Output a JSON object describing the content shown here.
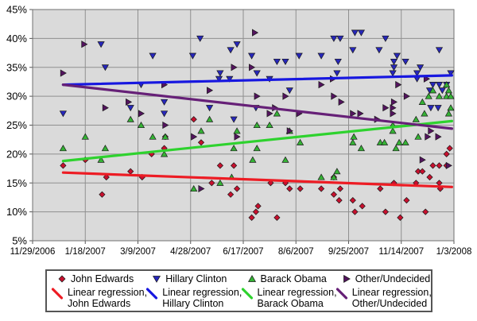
{
  "chart_data": {
    "type": "scatter",
    "title": "",
    "xlabel": "",
    "ylabel": "",
    "grid": true,
    "plot_bg": "#dadada",
    "grid_color": "#8f8f8f",
    "border_color": "#707070",
    "marker_edge": "#1a1a1a",
    "x_axis": {
      "range_days": [
        0,
        400
      ],
      "tick_days": [
        0,
        50,
        100,
        150,
        200,
        250,
        300,
        350,
        400
      ],
      "tick_labels": [
        "11/29/2006",
        "1/18/2007",
        "3/9/2007",
        "4/28/2007",
        "6/17/2007",
        "8/6/2007",
        "9/25/2007",
        "11/14/2007",
        "1/3/2008"
      ]
    },
    "y_axis": {
      "range": [
        5,
        45
      ],
      "ticks": [
        5,
        10,
        15,
        20,
        25,
        30,
        35,
        40,
        45
      ],
      "tick_labels": [
        "5%",
        "10%",
        "15%",
        "20%",
        "25%",
        "30%",
        "35%",
        "40%",
        "45%"
      ]
    },
    "series": [
      {
        "id": "edwards",
        "name": "John Edwards",
        "marker": "diamond",
        "color": "#c8102e",
        "points": [
          [
            29,
            18
          ],
          [
            50,
            19
          ],
          [
            66,
            13
          ],
          [
            70,
            16
          ],
          [
            93,
            17
          ],
          [
            104,
            16
          ],
          [
            113,
            20
          ],
          [
            125,
            21
          ],
          [
            126,
            23
          ],
          [
            153,
            26
          ],
          [
            160,
            22
          ],
          [
            170,
            15
          ],
          [
            178,
            18
          ],
          [
            188,
            13
          ],
          [
            191,
            18
          ],
          [
            194,
            14
          ],
          [
            208,
            9
          ],
          [
            212,
            10
          ],
          [
            214,
            11
          ],
          [
            226,
            15
          ],
          [
            232,
            9
          ],
          [
            240,
            15
          ],
          [
            244,
            14
          ],
          [
            254,
            14
          ],
          [
            274,
            14
          ],
          [
            286,
            16
          ],
          [
            286,
            13
          ],
          [
            291,
            12
          ],
          [
            292,
            14
          ],
          [
            304,
            12
          ],
          [
            306,
            10
          ],
          [
            313,
            11
          ],
          [
            330,
            14
          ],
          [
            335,
            10
          ],
          [
            343,
            15
          ],
          [
            349,
            9
          ],
          [
            355,
            12
          ],
          [
            364,
            15
          ],
          [
            366,
            17
          ],
          [
            370,
            17
          ],
          [
            373,
            10
          ],
          [
            377,
            16
          ],
          [
            380,
            18
          ],
          [
            386,
            15
          ],
          [
            386,
            18
          ],
          [
            387,
            14
          ],
          [
            393,
            18
          ],
          [
            393,
            20
          ],
          [
            396,
            21
          ]
        ]
      },
      {
        "id": "clinton",
        "name": "Hillary Clinton",
        "marker": "triangle-down",
        "color": "#2727bb",
        "points": [
          [
            29,
            27
          ],
          [
            65,
            39
          ],
          [
            69,
            35
          ],
          [
            93,
            28
          ],
          [
            103,
            32
          ],
          [
            114,
            37
          ],
          [
            125,
            29
          ],
          [
            125,
            27
          ],
          [
            152,
            37
          ],
          [
            159,
            40
          ],
          [
            168,
            28
          ],
          [
            177,
            33
          ],
          [
            178,
            34
          ],
          [
            187,
            33
          ],
          [
            188,
            38
          ],
          [
            191,
            26
          ],
          [
            194,
            39
          ],
          [
            208,
            37
          ],
          [
            212,
            28
          ],
          [
            213,
            34
          ],
          [
            225,
            33
          ],
          [
            232,
            36
          ],
          [
            240,
            36
          ],
          [
            244,
            31
          ],
          [
            253,
            37
          ],
          [
            274,
            37
          ],
          [
            286,
            40
          ],
          [
            289,
            34
          ],
          [
            290,
            36
          ],
          [
            292,
            40
          ],
          [
            304,
            38
          ],
          [
            306,
            41
          ],
          [
            312,
            41
          ],
          [
            329,
            38
          ],
          [
            335,
            40
          ],
          [
            342,
            34
          ],
          [
            343,
            36
          ],
          [
            343,
            35
          ],
          [
            346,
            37
          ],
          [
            354,
            36
          ],
          [
            365,
            34
          ],
          [
            365,
            33
          ],
          [
            368,
            35
          ],
          [
            377,
            31
          ],
          [
            378,
            28
          ],
          [
            380,
            32
          ],
          [
            385,
            28
          ],
          [
            386,
            32
          ],
          [
            386,
            38
          ],
          [
            389,
            31
          ],
          [
            393,
            32
          ],
          [
            397,
            34
          ]
        ]
      },
      {
        "id": "obama",
        "name": "Barack Obama",
        "marker": "triangle-up",
        "color": "#35b235",
        "points": [
          [
            29,
            21
          ],
          [
            50,
            23
          ],
          [
            65,
            19
          ],
          [
            69,
            21
          ],
          [
            93,
            26
          ],
          [
            103,
            25
          ],
          [
            114,
            23
          ],
          [
            125,
            20
          ],
          [
            126,
            23
          ],
          [
            153,
            14
          ],
          [
            160,
            24
          ],
          [
            168,
            26
          ],
          [
            178,
            15
          ],
          [
            189,
            16
          ],
          [
            191,
            21
          ],
          [
            194,
            24
          ],
          [
            209,
            19
          ],
          [
            213,
            21
          ],
          [
            213,
            25
          ],
          [
            225,
            25
          ],
          [
            232,
            27
          ],
          [
            240,
            19
          ],
          [
            244,
            24
          ],
          [
            254,
            22
          ],
          [
            274,
            16
          ],
          [
            286,
            16
          ],
          [
            289,
            17
          ],
          [
            304,
            22
          ],
          [
            305,
            23
          ],
          [
            312,
            21
          ],
          [
            330,
            22
          ],
          [
            334,
            22
          ],
          [
            342,
            24
          ],
          [
            342,
            25
          ],
          [
            345,
            21
          ],
          [
            348,
            22
          ],
          [
            354,
            22
          ],
          [
            364,
            26
          ],
          [
            366,
            23
          ],
          [
            370,
            29
          ],
          [
            372,
            27
          ],
          [
            376,
            30
          ],
          [
            380,
            31
          ],
          [
            386,
            30
          ],
          [
            393,
            30
          ],
          [
            393,
            32
          ],
          [
            395,
            27
          ],
          [
            395,
            31
          ],
          [
            397,
            28
          ],
          [
            397,
            30
          ]
        ]
      },
      {
        "id": "other",
        "name": "Other/Undecided",
        "marker": "triangle-right",
        "color": "#54135f",
        "points": [
          [
            29,
            34
          ],
          [
            49,
            39
          ],
          [
            69,
            28
          ],
          [
            91,
            29
          ],
          [
            103,
            27
          ],
          [
            125,
            32
          ],
          [
            126,
            25
          ],
          [
            153,
            23
          ],
          [
            160,
            14
          ],
          [
            168,
            31
          ],
          [
            191,
            35
          ],
          [
            194,
            23
          ],
          [
            208,
            35
          ],
          [
            211,
            41
          ],
          [
            213,
            30
          ],
          [
            225,
            27
          ],
          [
            230,
            28
          ],
          [
            240,
            30
          ],
          [
            244,
            24
          ],
          [
            253,
            27
          ],
          [
            274,
            32
          ],
          [
            285,
            33
          ],
          [
            286,
            30
          ],
          [
            293,
            29
          ],
          [
            304,
            27
          ],
          [
            311,
            27
          ],
          [
            327,
            26
          ],
          [
            335,
            28
          ],
          [
            342,
            27
          ],
          [
            342,
            28
          ],
          [
            343,
            29
          ],
          [
            347,
            32
          ],
          [
            355,
            30
          ],
          [
            370,
            19
          ],
          [
            374,
            33
          ],
          [
            375,
            23
          ],
          [
            378,
            24
          ],
          [
            385,
            23
          ],
          [
            395,
            18
          ]
        ]
      }
    ],
    "regressions": [
      {
        "id": "edwards",
        "name": "Linear regression, John Edwards",
        "color": "#ed1c24",
        "from": [
          29,
          16.8
        ],
        "to": [
          398,
          14.3
        ]
      },
      {
        "id": "clinton",
        "name": "Linear regression, Hillary Clinton",
        "color": "#1717e0",
        "from": [
          29,
          32.0
        ],
        "to": [
          398,
          33.6
        ]
      },
      {
        "id": "obama",
        "name": "Linear regression, Barack Obama",
        "color": "#2ed22e",
        "from": [
          29,
          18.8
        ],
        "to": [
          398,
          25.7
        ]
      },
      {
        "id": "other",
        "name": "Linear regression, Other/Undecided",
        "color": "#662077",
        "from": [
          29,
          32.0
        ],
        "to": [
          398,
          24.4
        ]
      }
    ],
    "legend": {
      "position": "bottom",
      "marker_row": [
        {
          "id": "edwards",
          "marker": "diamond",
          "color": "#c8102e",
          "label": "John Edwards"
        },
        {
          "id": "clinton",
          "marker": "triangle-down",
          "color": "#2727bb",
          "label": "Hillary Clinton"
        },
        {
          "id": "obama",
          "marker": "triangle-up",
          "color": "#35b235",
          "label": "Barack Obama"
        },
        {
          "id": "other",
          "marker": "triangle-right",
          "color": "#54135f",
          "label": "Other/Undecided"
        }
      ],
      "line_row": [
        {
          "id": "edwards",
          "color": "#ed1c24",
          "label_line1": "Linear regression,",
          "label_line2": "John Edwards"
        },
        {
          "id": "clinton",
          "color": "#1717e0",
          "label_line1": "Linear regression,",
          "label_line2": "Hillary Clinton"
        },
        {
          "id": "obama",
          "color": "#2ed22e",
          "label_line1": "Linear regression,",
          "label_line2": "Barack Obama"
        },
        {
          "id": "other",
          "color": "#662077",
          "label_line1": "Linear regression,",
          "label_line2": "Other/Undecided"
        }
      ]
    }
  }
}
